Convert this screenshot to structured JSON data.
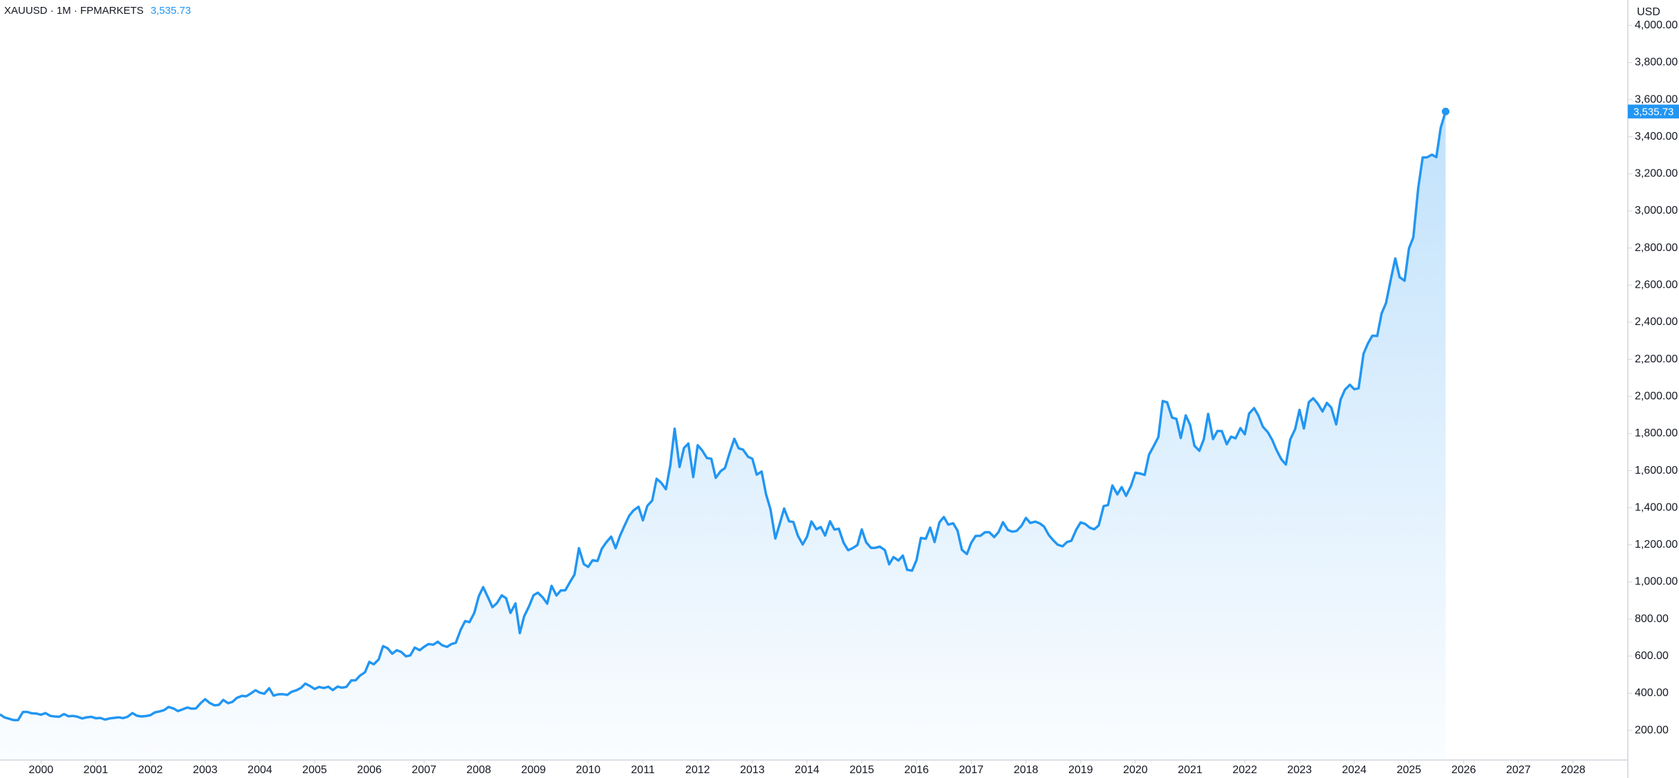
{
  "chart_data": {
    "type": "area",
    "title": "XAUUSD · 1M · FPMARKETS",
    "price_label": "3,535.73",
    "y_axis_label": "USD",
    "color": "#2196f3",
    "grid": false,
    "xlim": [
      1999.25,
      2029.0
    ],
    "xticks": [
      2000,
      2001,
      2002,
      2003,
      2004,
      2005,
      2006,
      2007,
      2008,
      2009,
      2010,
      2011,
      2012,
      2013,
      2014,
      2015,
      2016,
      2017,
      2018,
      2019,
      2020,
      2021,
      2022,
      2023,
      2024,
      2025,
      2026,
      2027,
      2028
    ],
    "ylim": [
      40,
      4137
    ],
    "yticks": [
      {
        "value": 200,
        "label": "200.00"
      },
      {
        "value": 400,
        "label": "400.00"
      },
      {
        "value": 600,
        "label": "600.00"
      },
      {
        "value": 800,
        "label": "800.00"
      },
      {
        "value": 1000,
        "label": "1,000.00"
      },
      {
        "value": 1200,
        "label": "1,200.00"
      },
      {
        "value": 1400,
        "label": "1,400.00"
      },
      {
        "value": 1600,
        "label": "1,600.00"
      },
      {
        "value": 1800,
        "label": "1,800.00"
      },
      {
        "value": 2000,
        "label": "2,000.00"
      },
      {
        "value": 2200,
        "label": "2,200.00"
      },
      {
        "value": 2400,
        "label": "2,400.00"
      },
      {
        "value": 2600,
        "label": "2,600.00"
      },
      {
        "value": 2800,
        "label": "2,800.00"
      },
      {
        "value": 3000,
        "label": "3,000.00"
      },
      {
        "value": 3200,
        "label": "3,200.00"
      },
      {
        "value": 3400,
        "label": "3,400.00"
      },
      {
        "value": 3600,
        "label": "3,600.00"
      },
      {
        "value": 3800,
        "label": "3,800.00"
      },
      {
        "value": 4000,
        "label": "4,000.00"
      }
    ],
    "x": [
      1999.25,
      1999.33,
      1999.42,
      1999.5,
      1999.58,
      1999.67,
      1999.75,
      1999.83,
      1999.92,
      2000,
      2000.08,
      2000.17,
      2000.25,
      2000.33,
      2000.42,
      2000.5,
      2000.58,
      2000.67,
      2000.75,
      2000.83,
      2000.92,
      2001,
      2001.08,
      2001.17,
      2001.25,
      2001.33,
      2001.42,
      2001.5,
      2001.58,
      2001.67,
      2001.75,
      2001.83,
      2001.92,
      2002,
      2002.08,
      2002.17,
      2002.25,
      2002.33,
      2002.42,
      2002.5,
      2002.58,
      2002.67,
      2002.75,
      2002.83,
      2002.92,
      2003,
      2003.08,
      2003.17,
      2003.25,
      2003.33,
      2003.42,
      2003.5,
      2003.58,
      2003.67,
      2003.75,
      2003.83,
      2003.92,
      2004,
      2004.08,
      2004.17,
      2004.25,
      2004.33,
      2004.42,
      2004.5,
      2004.58,
      2004.67,
      2004.75,
      2004.83,
      2004.92,
      2005,
      2005.08,
      2005.17,
      2005.25,
      2005.33,
      2005.42,
      2005.5,
      2005.58,
      2005.67,
      2005.75,
      2005.83,
      2005.92,
      2006,
      2006.08,
      2006.17,
      2006.25,
      2006.33,
      2006.42,
      2006.5,
      2006.58,
      2006.67,
      2006.75,
      2006.83,
      2006.92,
      2007,
      2007.08,
      2007.17,
      2007.25,
      2007.33,
      2007.42,
      2007.5,
      2007.58,
      2007.67,
      2007.75,
      2007.83,
      2007.92,
      2008,
      2008.08,
      2008.17,
      2008.25,
      2008.33,
      2008.42,
      2008.5,
      2008.58,
      2008.67,
      2008.75,
      2008.83,
      2008.92,
      2009,
      2009.08,
      2009.17,
      2009.25,
      2009.33,
      2009.42,
      2009.5,
      2009.58,
      2009.67,
      2009.75,
      2009.83,
      2009.92,
      2010,
      2010.08,
      2010.17,
      2010.25,
      2010.33,
      2010.42,
      2010.5,
      2010.58,
      2010.67,
      2010.75,
      2010.83,
      2010.92,
      2011,
      2011.08,
      2011.17,
      2011.25,
      2011.33,
      2011.42,
      2011.5,
      2011.58,
      2011.67,
      2011.75,
      2011.83,
      2011.92,
      2012,
      2012.08,
      2012.17,
      2012.25,
      2012.33,
      2012.42,
      2012.5,
      2012.58,
      2012.67,
      2012.75,
      2012.83,
      2012.92,
      2013,
      2013.08,
      2013.17,
      2013.25,
      2013.33,
      2013.42,
      2013.5,
      2013.58,
      2013.67,
      2013.75,
      2013.83,
      2013.92,
      2014,
      2014.08,
      2014.17,
      2014.25,
      2014.33,
      2014.42,
      2014.5,
      2014.58,
      2014.67,
      2014.75,
      2014.83,
      2014.92,
      2015,
      2015.08,
      2015.17,
      2015.25,
      2015.33,
      2015.42,
      2015.5,
      2015.58,
      2015.67,
      2015.75,
      2015.83,
      2015.92,
      2016,
      2016.08,
      2016.17,
      2016.25,
      2016.33,
      2016.42,
      2016.5,
      2016.58,
      2016.67,
      2016.75,
      2016.83,
      2016.92,
      2017,
      2017.08,
      2017.17,
      2017.25,
      2017.33,
      2017.42,
      2017.5,
      2017.58,
      2017.67,
      2017.75,
      2017.83,
      2017.92,
      2018,
      2018.08,
      2018.17,
      2018.25,
      2018.33,
      2018.42,
      2018.5,
      2018.58,
      2018.67,
      2018.75,
      2018.83,
      2018.92,
      2019,
      2019.08,
      2019.17,
      2019.25,
      2019.33,
      2019.42,
      2019.5,
      2019.58,
      2019.67,
      2019.75,
      2019.83,
      2019.92,
      2020,
      2020.08,
      2020.17,
      2020.25,
      2020.33,
      2020.42,
      2020.5,
      2020.58,
      2020.67,
      2020.75,
      2020.83,
      2020.92,
      2021,
      2021.08,
      2021.17,
      2021.25,
      2021.33,
      2021.42,
      2021.5,
      2021.58,
      2021.67,
      2021.75,
      2021.83,
      2021.92,
      2022,
      2022.08,
      2022.17,
      2022.25,
      2022.33,
      2022.42,
      2022.5,
      2022.58,
      2022.67,
      2022.75,
      2022.83,
      2022.92,
      2023,
      2023.08,
      2023.17,
      2023.25,
      2023.33,
      2023.42,
      2023.5,
      2023.58,
      2023.67,
      2023.75,
      2023.83,
      2023.92,
      2024,
      2024.08,
      2024.17,
      2024.25,
      2024.33,
      2024.42,
      2024.5,
      2024.58,
      2024.67,
      2024.75,
      2024.83,
      2024.92,
      2025,
      2025.08,
      2025.17,
      2025.25,
      2025.33,
      2025.42,
      2025.5,
      2025.58,
      2025.67
    ],
    "values": [
      286,
      270,
      262,
      255,
      255,
      299,
      299,
      292,
      290,
      284,
      293,
      278,
      275,
      273,
      288,
      276,
      278,
      273,
      264,
      270,
      273,
      265,
      267,
      258,
      264,
      267,
      270,
      266,
      273,
      293,
      279,
      275,
      277,
      282,
      297,
      302,
      309,
      326,
      318,
      304,
      312,
      323,
      317,
      318,
      347,
      368,
      348,
      335,
      337,
      364,
      346,
      354,
      375,
      386,
      384,
      398,
      416,
      403,
      397,
      427,
      387,
      394,
      395,
      391,
      408,
      416,
      429,
      452,
      438,
      423,
      434,
      428,
      435,
      417,
      436,
      430,
      434,
      469,
      470,
      495,
      513,
      569,
      556,
      582,
      654,
      643,
      613,
      632,
      623,
      599,
      604,
      646,
      632,
      650,
      665,
      662,
      678,
      659,
      650,
      665,
      672,
      742,
      789,
      783,
      834,
      923,
      972,
      916,
      864,
      885,
      928,
      912,
      833,
      884,
      724,
      815,
      869,
      928,
      942,
      916,
      883,
      979,
      927,
      954,
      955,
      1001,
      1040,
      1182,
      1096,
      1081,
      1117,
      1113,
      1180,
      1213,
      1244,
      1182,
      1248,
      1307,
      1357,
      1386,
      1405,
      1332,
      1410,
      1439,
      1556,
      1536,
      1500,
      1628,
      1826,
      1620,
      1722,
      1746,
      1565,
      1737,
      1710,
      1668,
      1664,
      1561,
      1597,
      1614,
      1692,
      1772,
      1720,
      1713,
      1675,
      1664,
      1578,
      1595,
      1472,
      1393,
      1234,
      1312,
      1396,
      1327,
      1323,
      1250,
      1202,
      1244,
      1326,
      1284,
      1296,
      1250,
      1327,
      1282,
      1287,
      1210,
      1171,
      1182,
      1199,
      1283,
      1213,
      1183,
      1184,
      1190,
      1172,
      1095,
      1134,
      1115,
      1142,
      1065,
      1061,
      1118,
      1237,
      1233,
      1293,
      1215,
      1322,
      1350,
      1309,
      1316,
      1277,
      1173,
      1150,
      1211,
      1248,
      1249,
      1268,
      1268,
      1242,
      1269,
      1322,
      1280,
      1271,
      1275,
      1303,
      1345,
      1318,
      1325,
      1316,
      1299,
      1252,
      1224,
      1201,
      1192,
      1215,
      1222,
      1282,
      1321,
      1313,
      1292,
      1284,
      1305,
      1409,
      1414,
      1520,
      1472,
      1511,
      1464,
      1517,
      1589,
      1585,
      1577,
      1686,
      1730,
      1781,
      1975,
      1968,
      1886,
      1879,
      1776,
      1898,
      1847,
      1734,
      1707,
      1769,
      1906,
      1770,
      1814,
      1813,
      1742,
      1783,
      1774,
      1829,
      1796,
      1908,
      1937,
      1896,
      1837,
      1807,
      1766,
      1711,
      1660,
      1633,
      1768,
      1824,
      1928,
      1827,
      1969,
      1990,
      1962,
      1919,
      1965,
      1940,
      1849,
      1983,
      2036,
      2063,
      2039,
      2044,
      2230,
      2286,
      2327,
      2326,
      2447,
      2503,
      2634,
      2744,
      2643,
      2624,
      2798,
      2858,
      3124,
      3288,
      3289,
      3303,
      3290,
      3448,
      3535.73
    ]
  }
}
